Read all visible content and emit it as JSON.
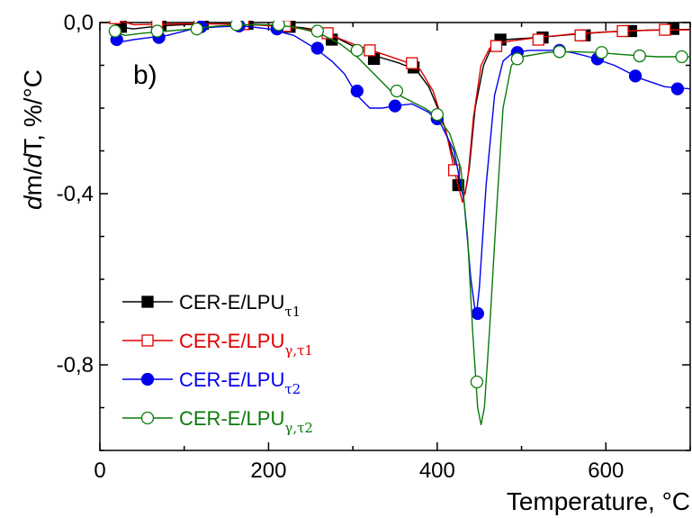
{
  "chart_data": {
    "type": "line",
    "panel_label": "b)",
    "xlabel": "Temperature, °C",
    "ylabel_parts": {
      "d": "d",
      "m": "m/",
      "d2": "d",
      "T": "T",
      "rest": ", %/°C"
    },
    "xlim": [
      0,
      700
    ],
    "ylim": [
      -1.0,
      0.0
    ],
    "x_ticks": [
      0,
      200,
      400,
      600
    ],
    "x_tick_labels": [
      "0",
      "200",
      "400",
      "600"
    ],
    "y_ticks": [
      0.0,
      -0.4,
      -0.8
    ],
    "y_tick_labels": [
      "0,0",
      "-0,4",
      "-0,8"
    ],
    "grid": false,
    "legend_position": "bottom-left",
    "series": [
      {
        "name": "CER-E/LPU",
        "subscript": "τ1",
        "color": "#000000",
        "marker": "square-filled",
        "line": [
          [
            20,
            -0.01
          ],
          [
            40,
            -0.015
          ],
          [
            70,
            -0.008
          ],
          [
            100,
            -0.005
          ],
          [
            130,
            -0.003
          ],
          [
            160,
            -0.003
          ],
          [
            180,
            -0.004
          ],
          [
            210,
            -0.007
          ],
          [
            240,
            -0.012
          ],
          [
            265,
            -0.02
          ],
          [
            285,
            -0.04
          ],
          [
            305,
            -0.06
          ],
          [
            330,
            -0.08
          ],
          [
            355,
            -0.095
          ],
          [
            375,
            -0.11
          ],
          [
            390,
            -0.15
          ],
          [
            405,
            -0.22
          ],
          [
            420,
            -0.32
          ],
          [
            428,
            -0.39
          ],
          [
            433,
            -0.4
          ],
          [
            438,
            -0.34
          ],
          [
            445,
            -0.2
          ],
          [
            455,
            -0.1
          ],
          [
            465,
            -0.055
          ],
          [
            480,
            -0.04
          ],
          [
            520,
            -0.035
          ],
          [
            560,
            -0.028
          ],
          [
            600,
            -0.022
          ],
          [
            650,
            -0.018
          ],
          [
            700,
            -0.016
          ]
        ],
        "markers": [
          [
            25,
            -0.01
          ],
          [
            72,
            -0.005
          ],
          [
            122,
            -0.003
          ],
          [
            175,
            -0.003
          ],
          [
            225,
            -0.01
          ],
          [
            275,
            -0.04
          ],
          [
            325,
            -0.085
          ],
          [
            372,
            -0.105
          ],
          [
            425,
            -0.38
          ],
          [
            475,
            -0.04
          ],
          [
            525,
            -0.035
          ],
          [
            575,
            -0.03
          ],
          [
            630,
            -0.02
          ],
          [
            680,
            -0.015
          ]
        ]
      },
      {
        "name": "CER-E/LPU",
        "subscript": "γ,τ1",
        "color": "#e00000",
        "marker": "square-open",
        "line": [
          [
            15,
            0.02
          ],
          [
            22,
            0.005
          ],
          [
            40,
            -0.005
          ],
          [
            70,
            -0.004
          ],
          [
            100,
            -0.003
          ],
          [
            130,
            -0.003
          ],
          [
            160,
            -0.004
          ],
          [
            190,
            -0.006
          ],
          [
            220,
            -0.01
          ],
          [
            250,
            -0.017
          ],
          [
            275,
            -0.03
          ],
          [
            300,
            -0.05
          ],
          [
            330,
            -0.07
          ],
          [
            360,
            -0.09
          ],
          [
            380,
            -0.11
          ],
          [
            395,
            -0.16
          ],
          [
            410,
            -0.25
          ],
          [
            422,
            -0.36
          ],
          [
            430,
            -0.42
          ],
          [
            436,
            -0.37
          ],
          [
            443,
            -0.22
          ],
          [
            452,
            -0.1
          ],
          [
            462,
            -0.06
          ],
          [
            480,
            -0.045
          ],
          [
            520,
            -0.035
          ],
          [
            560,
            -0.027
          ],
          [
            600,
            -0.022
          ],
          [
            650,
            -0.018
          ],
          [
            700,
            -0.017
          ]
        ],
        "markers": [
          [
            18,
            0.01
          ],
          [
            68,
            -0.004
          ],
          [
            118,
            -0.003
          ],
          [
            170,
            -0.004
          ],
          [
            220,
            -0.008
          ],
          [
            270,
            -0.025
          ],
          [
            320,
            -0.065
          ],
          [
            370,
            -0.095
          ],
          [
            420,
            -0.345
          ],
          [
            470,
            -0.055
          ],
          [
            520,
            -0.04
          ],
          [
            570,
            -0.03
          ],
          [
            620,
            -0.02
          ],
          [
            670,
            -0.017
          ]
        ]
      },
      {
        "name": "CER-E/LPU",
        "subscript": "τ2",
        "color": "#0000ee",
        "marker": "circle-filled",
        "line": [
          [
            15,
            -0.04
          ],
          [
            25,
            -0.045
          ],
          [
            40,
            -0.04
          ],
          [
            60,
            -0.035
          ],
          [
            80,
            -0.03
          ],
          [
            110,
            -0.015
          ],
          [
            140,
            -0.01
          ],
          [
            170,
            -0.008
          ],
          [
            200,
            -0.015
          ],
          [
            230,
            -0.03
          ],
          [
            255,
            -0.06
          ],
          [
            275,
            -0.09
          ],
          [
            290,
            -0.12
          ],
          [
            305,
            -0.17
          ],
          [
            320,
            -0.2
          ],
          [
            335,
            -0.2
          ],
          [
            350,
            -0.195
          ],
          [
            370,
            -0.19
          ],
          [
            390,
            -0.21
          ],
          [
            405,
            -0.24
          ],
          [
            420,
            -0.3
          ],
          [
            432,
            -0.42
          ],
          [
            440,
            -0.6
          ],
          [
            446,
            -0.69
          ],
          [
            450,
            -0.62
          ],
          [
            458,
            -0.38
          ],
          [
            468,
            -0.17
          ],
          [
            478,
            -0.09
          ],
          [
            490,
            -0.07
          ],
          [
            510,
            -0.065
          ],
          [
            540,
            -0.065
          ],
          [
            560,
            -0.07
          ],
          [
            580,
            -0.08
          ],
          [
            610,
            -0.1
          ],
          [
            640,
            -0.13
          ],
          [
            670,
            -0.15
          ],
          [
            700,
            -0.155
          ]
        ],
        "markers": [
          [
            20,
            -0.04
          ],
          [
            70,
            -0.035
          ],
          [
            120,
            -0.01
          ],
          [
            165,
            -0.008
          ],
          [
            210,
            -0.015
          ],
          [
            258,
            -0.06
          ],
          [
            305,
            -0.16
          ],
          [
            350,
            -0.195
          ],
          [
            400,
            -0.225
          ],
          [
            448,
            -0.68
          ],
          [
            495,
            -0.07
          ],
          [
            545,
            -0.065
          ],
          [
            590,
            -0.085
          ],
          [
            635,
            -0.125
          ],
          [
            685,
            -0.155
          ]
        ]
      },
      {
        "name": "CER-E/LPU",
        "subscript": "γ,τ2",
        "color": "#0a7a0a",
        "marker": "circle-open",
        "line": [
          [
            15,
            -0.02
          ],
          [
            30,
            -0.03
          ],
          [
            50,
            -0.025
          ],
          [
            80,
            -0.02
          ],
          [
            110,
            -0.015
          ],
          [
            140,
            -0.008
          ],
          [
            170,
            -0.005
          ],
          [
            200,
            -0.005
          ],
          [
            230,
            -0.01
          ],
          [
            260,
            -0.025
          ],
          [
            285,
            -0.05
          ],
          [
            305,
            -0.08
          ],
          [
            325,
            -0.12
          ],
          [
            345,
            -0.16
          ],
          [
            365,
            -0.18
          ],
          [
            385,
            -0.2
          ],
          [
            400,
            -0.22
          ],
          [
            415,
            -0.26
          ],
          [
            428,
            -0.34
          ],
          [
            436,
            -0.5
          ],
          [
            442,
            -0.72
          ],
          [
            448,
            -0.9
          ],
          [
            452,
            -0.94
          ],
          [
            456,
            -0.9
          ],
          [
            462,
            -0.72
          ],
          [
            470,
            -0.45
          ],
          [
            478,
            -0.2
          ],
          [
            488,
            -0.1
          ],
          [
            500,
            -0.08
          ],
          [
            530,
            -0.07
          ],
          [
            560,
            -0.068
          ],
          [
            590,
            -0.07
          ],
          [
            620,
            -0.075
          ],
          [
            660,
            -0.08
          ],
          [
            700,
            -0.08
          ]
        ],
        "markers": [
          [
            18,
            -0.02
          ],
          [
            68,
            -0.02
          ],
          [
            115,
            -0.015
          ],
          [
            162,
            -0.005
          ],
          [
            212,
            -0.005
          ],
          [
            258,
            -0.02
          ],
          [
            305,
            -0.065
          ],
          [
            352,
            -0.16
          ],
          [
            400,
            -0.215
          ],
          [
            447,
            -0.84
          ],
          [
            495,
            -0.085
          ],
          [
            545,
            -0.068
          ],
          [
            595,
            -0.07
          ],
          [
            640,
            -0.078
          ],
          [
            690,
            -0.08
          ]
        ]
      }
    ]
  }
}
